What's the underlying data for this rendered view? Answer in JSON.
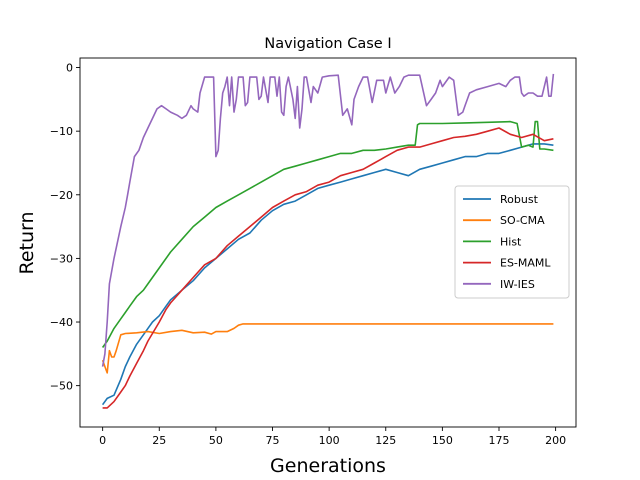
{
  "chart_data": {
    "type": "line",
    "title": "Navigation Case I",
    "xlabel": "Generations",
    "ylabel": "Return",
    "xlim": [
      -10,
      209
    ],
    "ylim": [
      -56.5,
      1.5
    ],
    "xticks": [
      0,
      25,
      50,
      75,
      100,
      125,
      150,
      175,
      200
    ],
    "yticks": [
      0,
      -10,
      -20,
      -30,
      -40,
      -50
    ],
    "grid": false,
    "legend_position": "center-right",
    "series": [
      {
        "name": "Robust",
        "color": "#1f77b4",
        "points": [
          [
            0,
            -53
          ],
          [
            2,
            -52
          ],
          [
            5,
            -51.5
          ],
          [
            8,
            -49
          ],
          [
            10,
            -47
          ],
          [
            12,
            -45.5
          ],
          [
            15,
            -43.5
          ],
          [
            18,
            -42
          ],
          [
            20,
            -41
          ],
          [
            22,
            -40
          ],
          [
            25,
            -39
          ],
          [
            28,
            -37.5
          ],
          [
            30,
            -36.5
          ],
          [
            35,
            -35
          ],
          [
            40,
            -33.5
          ],
          [
            45,
            -31.5
          ],
          [
            50,
            -30
          ],
          [
            55,
            -28.5
          ],
          [
            60,
            -27
          ],
          [
            65,
            -26
          ],
          [
            70,
            -24
          ],
          [
            75,
            -22.5
          ],
          [
            80,
            -21.5
          ],
          [
            85,
            -21
          ],
          [
            90,
            -20
          ],
          [
            95,
            -19
          ],
          [
            100,
            -18.5
          ],
          [
            105,
            -18
          ],
          [
            110,
            -17.5
          ],
          [
            115,
            -17
          ],
          [
            120,
            -16.5
          ],
          [
            125,
            -16
          ],
          [
            130,
            -16.5
          ],
          [
            135,
            -17
          ],
          [
            140,
            -16
          ],
          [
            145,
            -15.5
          ],
          [
            150,
            -15
          ],
          [
            155,
            -14.5
          ],
          [
            160,
            -14
          ],
          [
            165,
            -14
          ],
          [
            170,
            -13.5
          ],
          [
            175,
            -13.5
          ],
          [
            180,
            -13
          ],
          [
            185,
            -12.5
          ],
          [
            190,
            -12
          ],
          [
            195,
            -12
          ],
          [
            199,
            -12.2
          ]
        ]
      },
      {
        "name": "SO-CMA",
        "color": "#ff7f0e",
        "points": [
          [
            0,
            -46
          ],
          [
            1,
            -47
          ],
          [
            2,
            -48
          ],
          [
            3,
            -44.5
          ],
          [
            4,
            -45.5
          ],
          [
            5,
            -45.5
          ],
          [
            6,
            -44.5
          ],
          [
            8,
            -42
          ],
          [
            10,
            -41.8
          ],
          [
            15,
            -41.7
          ],
          [
            20,
            -41.5
          ],
          [
            25,
            -41.8
          ],
          [
            30,
            -41.5
          ],
          [
            35,
            -41.3
          ],
          [
            40,
            -41.7
          ],
          [
            45,
            -41.6
          ],
          [
            48,
            -41.9
          ],
          [
            50,
            -41.5
          ],
          [
            55,
            -41.5
          ],
          [
            58,
            -41
          ],
          [
            60,
            -40.5
          ],
          [
            62,
            -40.3
          ],
          [
            70,
            -40.3
          ],
          [
            100,
            -40.3
          ],
          [
            150,
            -40.3
          ],
          [
            199,
            -40.3
          ]
        ]
      },
      {
        "name": "Hist",
        "color": "#2ca02c",
        "points": [
          [
            0,
            -44
          ],
          [
            2,
            -43
          ],
          [
            5,
            -41
          ],
          [
            8,
            -39.5
          ],
          [
            10,
            -38.5
          ],
          [
            12,
            -37.5
          ],
          [
            15,
            -36
          ],
          [
            18,
            -35
          ],
          [
            20,
            -34
          ],
          [
            25,
            -31.5
          ],
          [
            30,
            -29
          ],
          [
            35,
            -27
          ],
          [
            40,
            -25
          ],
          [
            45,
            -23.5
          ],
          [
            50,
            -22
          ],
          [
            55,
            -21
          ],
          [
            60,
            -20
          ],
          [
            65,
            -19
          ],
          [
            70,
            -18
          ],
          [
            75,
            -17
          ],
          [
            80,
            -16
          ],
          [
            85,
            -15.5
          ],
          [
            90,
            -15
          ],
          [
            95,
            -14.5
          ],
          [
            100,
            -14
          ],
          [
            105,
            -13.5
          ],
          [
            110,
            -13.5
          ],
          [
            115,
            -13
          ],
          [
            120,
            -13
          ],
          [
            125,
            -12.8
          ],
          [
            130,
            -12.5
          ],
          [
            135,
            -12.2
          ],
          [
            138,
            -12.2
          ],
          [
            139,
            -9
          ],
          [
            140,
            -8.8
          ],
          [
            150,
            -8.8
          ],
          [
            160,
            -8.7
          ],
          [
            170,
            -8.6
          ],
          [
            180,
            -8.5
          ],
          [
            183,
            -8.8
          ],
          [
            185,
            -12.5
          ],
          [
            188,
            -12.2
          ],
          [
            190,
            -12.5
          ],
          [
            191,
            -8.5
          ],
          [
            192,
            -8.5
          ],
          [
            193,
            -12.8
          ],
          [
            195,
            -12.8
          ],
          [
            199,
            -13
          ]
        ]
      },
      {
        "name": "ES-MAML",
        "color": "#d62728",
        "points": [
          [
            0,
            -53.5
          ],
          [
            2,
            -53.5
          ],
          [
            5,
            -52.5
          ],
          [
            8,
            -51
          ],
          [
            10,
            -50
          ],
          [
            12,
            -48.5
          ],
          [
            15,
            -46.5
          ],
          [
            18,
            -44.5
          ],
          [
            20,
            -43
          ],
          [
            25,
            -40
          ],
          [
            28,
            -38
          ],
          [
            30,
            -37
          ],
          [
            35,
            -35
          ],
          [
            40,
            -33
          ],
          [
            45,
            -31
          ],
          [
            50,
            -30
          ],
          [
            55,
            -28
          ],
          [
            60,
            -26.5
          ],
          [
            65,
            -25
          ],
          [
            70,
            -23.5
          ],
          [
            75,
            -22
          ],
          [
            80,
            -21
          ],
          [
            85,
            -20
          ],
          [
            90,
            -19.5
          ],
          [
            95,
            -18.5
          ],
          [
            100,
            -18
          ],
          [
            105,
            -17
          ],
          [
            110,
            -16.5
          ],
          [
            115,
            -16
          ],
          [
            120,
            -15
          ],
          [
            125,
            -14
          ],
          [
            130,
            -13
          ],
          [
            135,
            -12.5
          ],
          [
            140,
            -12.5
          ],
          [
            145,
            -12
          ],
          [
            150,
            -11.5
          ],
          [
            155,
            -11
          ],
          [
            160,
            -10.8
          ],
          [
            165,
            -10.5
          ],
          [
            170,
            -10
          ],
          [
            175,
            -9.5
          ],
          [
            180,
            -10.5
          ],
          [
            185,
            -11
          ],
          [
            190,
            -10.5
          ],
          [
            195,
            -11.5
          ],
          [
            199,
            -11.2
          ]
        ]
      },
      {
        "name": "IW-IES",
        "color": "#9467bd",
        "points": [
          [
            0,
            -47
          ],
          [
            1,
            -45
          ],
          [
            2,
            -40
          ],
          [
            3,
            -34
          ],
          [
            5,
            -30
          ],
          [
            8,
            -25
          ],
          [
            10,
            -22
          ],
          [
            11,
            -20
          ],
          [
            12,
            -18
          ],
          [
            14,
            -14
          ],
          [
            16,
            -13
          ],
          [
            18,
            -11
          ],
          [
            20,
            -9.5
          ],
          [
            22,
            -8
          ],
          [
            24,
            -6.5
          ],
          [
            26,
            -6
          ],
          [
            28,
            -6.5
          ],
          [
            30,
            -7
          ],
          [
            33,
            -7.5
          ],
          [
            35,
            -8
          ],
          [
            37,
            -7.5
          ],
          [
            39,
            -6
          ],
          [
            40,
            -6.5
          ],
          [
            42,
            -7
          ],
          [
            43,
            -4
          ],
          [
            45,
            -1.5
          ],
          [
            47,
            -1.5
          ],
          [
            49,
            -1.5
          ],
          [
            50,
            -14
          ],
          [
            51,
            -13
          ],
          [
            52,
            -8
          ],
          [
            53,
            -4
          ],
          [
            54,
            -3
          ],
          [
            55,
            -1.5
          ],
          [
            56,
            -6
          ],
          [
            57,
            -1.5
          ],
          [
            58,
            -7
          ],
          [
            59,
            -5
          ],
          [
            60,
            -1.5
          ],
          [
            62,
            -1.5
          ],
          [
            63,
            -6
          ],
          [
            64,
            -5.5
          ],
          [
            65,
            -1.5
          ],
          [
            68,
            -1.5
          ],
          [
            69,
            -5
          ],
          [
            70,
            -4.5
          ],
          [
            71,
            -1.5
          ],
          [
            73,
            -5.5
          ],
          [
            74,
            -1.5
          ],
          [
            76,
            -1.5
          ],
          [
            77,
            -4.5
          ],
          [
            78,
            -1.5
          ],
          [
            79,
            -7
          ],
          [
            80,
            -7.5
          ],
          [
            81,
            -3
          ],
          [
            82,
            -1.5
          ],
          [
            84,
            -5
          ],
          [
            85,
            -8
          ],
          [
            86,
            -3
          ],
          [
            87,
            -9.5
          ],
          [
            88,
            -6.5
          ],
          [
            89,
            -1.5
          ],
          [
            90,
            -1.5
          ],
          [
            92,
            -5.5
          ],
          [
            93,
            -3
          ],
          [
            95,
            -4
          ],
          [
            97,
            -1.5
          ],
          [
            100,
            -1.3
          ],
          [
            104,
            -1.2
          ],
          [
            106,
            -7.5
          ],
          [
            108,
            -6.5
          ],
          [
            110,
            -9
          ],
          [
            111,
            -5
          ],
          [
            113,
            -3
          ],
          [
            115,
            -1.5
          ],
          [
            117,
            -1.5
          ],
          [
            119,
            -5.5
          ],
          [
            121,
            -2
          ],
          [
            124,
            -2
          ],
          [
            125,
            -4
          ],
          [
            127,
            -1.5
          ],
          [
            129,
            -4
          ],
          [
            131,
            -3
          ],
          [
            133,
            -1.5
          ],
          [
            135,
            -1.2
          ],
          [
            140,
            -1.2
          ],
          [
            143,
            -6
          ],
          [
            145,
            -5
          ],
          [
            147,
            -4
          ],
          [
            149,
            -2
          ],
          [
            150,
            -3
          ],
          [
            153,
            -1.5
          ],
          [
            155,
            -2
          ],
          [
            157,
            -7.5
          ],
          [
            159,
            -7
          ],
          [
            160,
            -6
          ],
          [
            162,
            -4
          ],
          [
            165,
            -3.5
          ],
          [
            170,
            -3
          ],
          [
            175,
            -2.5
          ],
          [
            178,
            -3
          ],
          [
            180,
            -2
          ],
          [
            182,
            -1.5
          ],
          [
            184,
            -1.5
          ],
          [
            185,
            -4
          ],
          [
            186,
            -4.5
          ],
          [
            188,
            -4
          ],
          [
            190,
            -4
          ],
          [
            192,
            -4.5
          ],
          [
            194,
            -4.5
          ],
          [
            196,
            -1.5
          ],
          [
            197,
            -4.5
          ],
          [
            198,
            -4.5
          ],
          [
            199,
            -1
          ]
        ]
      }
    ]
  }
}
